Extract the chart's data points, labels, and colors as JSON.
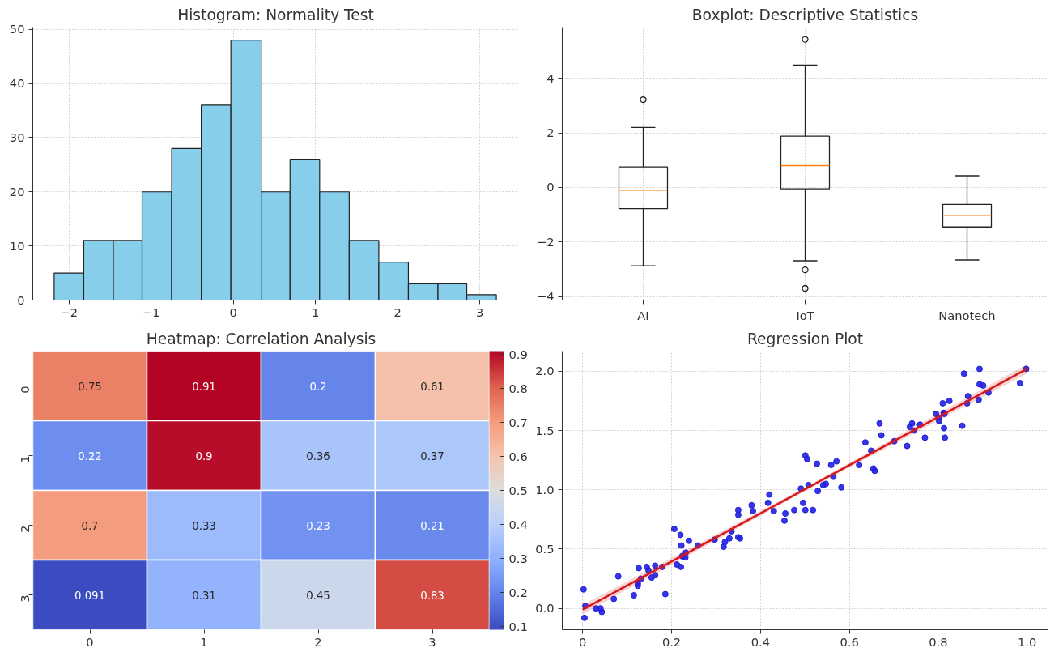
{
  "chart_data": [
    {
      "type": "histogram",
      "title": "Histogram: Normality Test",
      "color": "#87ceeb",
      "bins": [
        -2.18,
        -1.82,
        -1.46,
        -1.11,
        -0.75,
        -0.39,
        -0.03,
        0.34,
        0.69,
        1.05,
        1.41,
        1.77,
        2.13,
        2.49,
        2.84,
        3.2
      ],
      "values": [
        5,
        11,
        11,
        20,
        28,
        36,
        48,
        20,
        26,
        20,
        11,
        7,
        3,
        3,
        1
      ],
      "xlim": [
        -2.44,
        3.47
      ],
      "xticks": [
        -2,
        -1,
        0,
        1,
        2,
        3
      ],
      "ylim": [
        0,
        50.4
      ],
      "yticks": [
        0,
        10,
        20,
        30,
        40,
        50
      ],
      "grid": true
    },
    {
      "type": "box",
      "title": "Boxplot: Descriptive Statistics",
      "categories": [
        "AI",
        "IoT",
        "Nanotech"
      ],
      "boxes": [
        {
          "low": -2.87,
          "q1": -0.78,
          "median": -0.1,
          "q3": 0.75,
          "high": 2.2,
          "outliers": [
            3.22
          ]
        },
        {
          "low": -2.69,
          "q1": -0.05,
          "median": 0.8,
          "q3": 1.88,
          "high": 4.49,
          "outliers": [
            5.43,
            -3.02,
            -3.7
          ]
        },
        {
          "low": -2.66,
          "q1": -1.45,
          "median": -1.02,
          "q3": -0.62,
          "high": 0.43
        }
      ],
      "ylim": [
        -4.13,
        5.88
      ],
      "yticks": [
        -4,
        -2,
        0,
        2,
        4
      ],
      "grid": true
    },
    {
      "type": "heatmap",
      "title": "Heatmap: Correlation Analysis",
      "categories": [
        "0",
        "1",
        "2",
        "3"
      ],
      "y_categories": [
        "0",
        "1",
        "2",
        "3"
      ],
      "cells": [
        [
          0.75,
          0.91,
          0.2,
          0.61
        ],
        [
          0.22,
          0.9,
          0.36,
          0.37
        ],
        [
          0.7,
          0.33,
          0.23,
          0.21
        ],
        [
          0.091,
          0.31,
          0.45,
          0.83
        ]
      ],
      "clim": [
        0.091,
        0.91
      ],
      "cticks": [
        0.1,
        0.2,
        0.3,
        0.4,
        0.5,
        0.6,
        0.7,
        0.8,
        0.9
      ],
      "data_labels": true
    },
    {
      "type": "scatter",
      "title": "Regression Plot",
      "grid": true,
      "xlim": [
        -0.046,
        1.047
      ],
      "xticks": [
        0.0,
        {
          "value": 0.2,
          "label": "0.2"
        },
        {
          "value": 0.4,
          "label": "0.4"
        },
        {
          "value": 0.6,
          "label": "0.6"
        },
        {
          "value": 0.8,
          "label": "0.8"
        },
        {
          "value": 1.0,
          "label": "1.0"
        }
      ],
      "ylim": [
        -0.18,
        2.17
      ],
      "yticks": [
        {
          "value": 0.0,
          "label": "0.0"
        },
        {
          "value": 0.5,
          "label": "0.5"
        },
        {
          "value": 1.0,
          "label": "1.0"
        },
        {
          "value": 1.5,
          "label": "1.5"
        },
        {
          "value": 2.0,
          "label": "2.0"
        }
      ],
      "series": [
        {
          "type": "scatter",
          "color": "#2020e0",
          "marker": "circle",
          "x": [
            0.002,
            0.006,
            0.004,
            0.03,
            0.04,
            0.043,
            0.07,
            0.08,
            0.115,
            0.124,
            0.124,
            0.126,
            0.131,
            0.144,
            0.148,
            0.155,
            0.163,
            0.163,
            0.179,
            0.186,
            0.206,
            0.212,
            0.22,
            0.221,
            0.222,
            0.224,
            0.231,
            0.232,
            0.239,
            0.259,
            0.297,
            0.317,
            0.32,
            0.33,
            0.335,
            0.35,
            0.35,
            0.35,
            0.354,
            0.38,
            0.383,
            0.417,
            0.42,
            0.43,
            0.454,
            0.456,
            0.476,
            0.491,
            0.496,
            0.501,
            0.501,
            0.505,
            0.508,
            0.518,
            0.527,
            0.529,
            0.541,
            0.547,
            0.559,
            0.564,
            0.571,
            0.582,
            0.622,
            0.636,
            0.649,
            0.654,
            0.657,
            0.668,
            0.672,
            0.701,
            0.73,
            0.736,
            0.741,
            0.746,
            0.759,
            0.77,
            0.795,
            0.801,
            0.802,
            0.81,
            0.812,
            0.813,
            0.814,
            0.815,
            0.825,
            0.854,
            0.858,
            0.865,
            0.867,
            0.891,
            0.893,
            0.893,
            0.901,
            0.913,
            0.984,
            0.998
          ],
          "values": [
            0.16,
            0.02,
            -0.08,
            0.0,
            0.0,
            -0.03,
            0.08,
            0.27,
            0.11,
            0.19,
            0.21,
            0.34,
            0.25,
            0.35,
            0.32,
            0.26,
            0.36,
            0.28,
            0.35,
            0.12,
            0.67,
            0.37,
            0.62,
            0.35,
            0.53,
            0.44,
            0.43,
            0.47,
            0.57,
            0.53,
            0.58,
            0.52,
            0.56,
            0.59,
            0.65,
            0.83,
            0.79,
            0.6,
            0.59,
            0.87,
            0.82,
            0.89,
            0.96,
            0.82,
            0.74,
            0.8,
            0.83,
            1.01,
            0.89,
            1.29,
            0.83,
            1.26,
            1.04,
            0.83,
            1.22,
            0.99,
            1.04,
            1.05,
            1.21,
            1.11,
            1.24,
            1.02,
            1.21,
            1.4,
            1.33,
            1.18,
            1.16,
            1.56,
            1.46,
            1.41,
            1.37,
            1.53,
            1.56,
            1.5,
            1.55,
            1.44,
            1.64,
            1.61,
            1.58,
            1.73,
            1.65,
            1.52,
            1.64,
            1.44,
            1.75,
            1.54,
            1.98,
            1.73,
            1.79,
            1.76,
            1.89,
            2.02,
            1.88,
            1.82,
            1.9,
            2.02
          ]
        },
        {
          "type": "line",
          "color": "#d7191c",
          "x": [
            0.0,
            0.5,
            1.0
          ],
          "values": [
            -0.01,
            1.005,
            2.02
          ],
          "lower": [
            -0.05,
            0.99,
            1.98
          ],
          "upper": [
            0.03,
            1.02,
            2.06
          ]
        }
      ]
    }
  ]
}
